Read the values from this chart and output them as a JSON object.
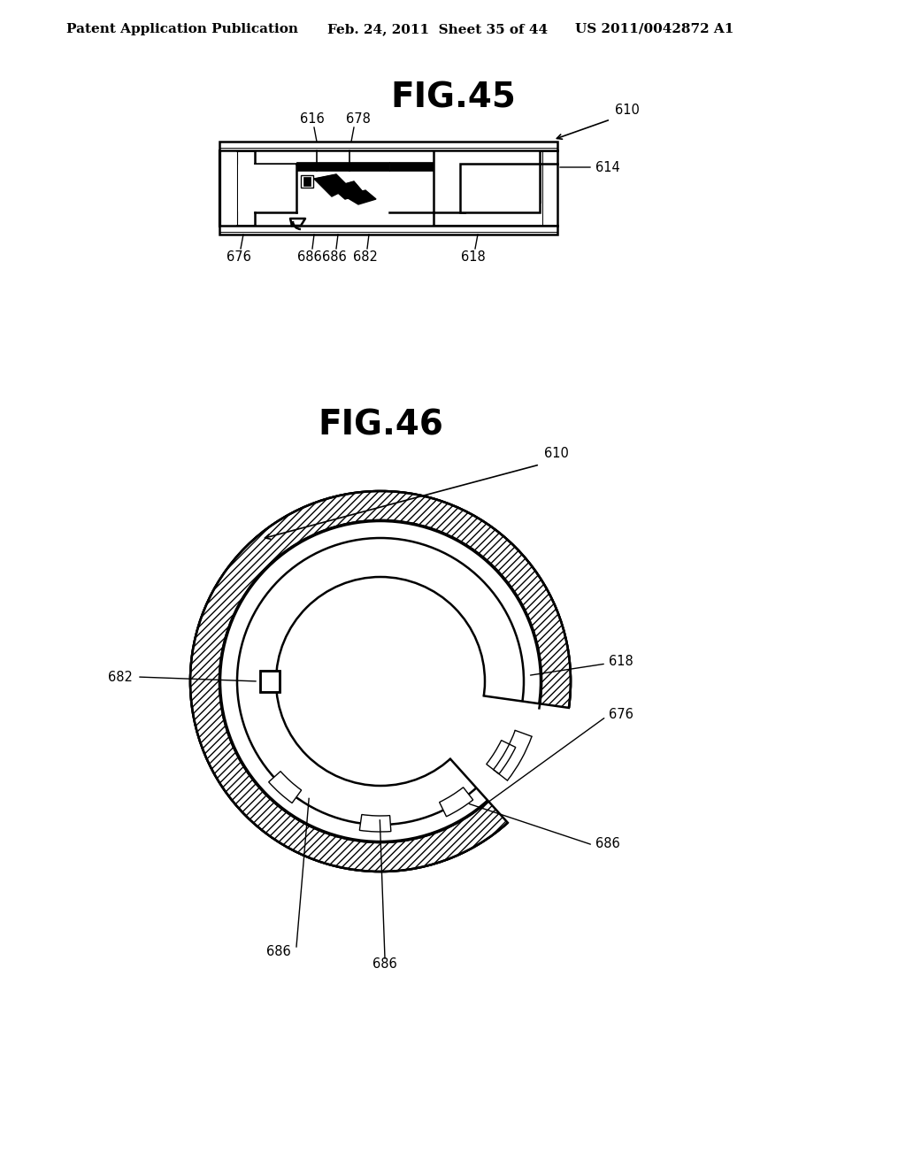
{
  "bg_color": "#ffffff",
  "header_text": "Patent Application Publication",
  "header_date": "Feb. 24, 2011  Sheet 35 of 44",
  "header_patent": "US 2011/0042872 A1",
  "fig45_title": "FIG.45",
  "fig46_title": "FIG.46",
  "fig_title_fontsize": 28,
  "label_fontsize": 10.5,
  "header_fontsize": 11,
  "lw": 1.8
}
